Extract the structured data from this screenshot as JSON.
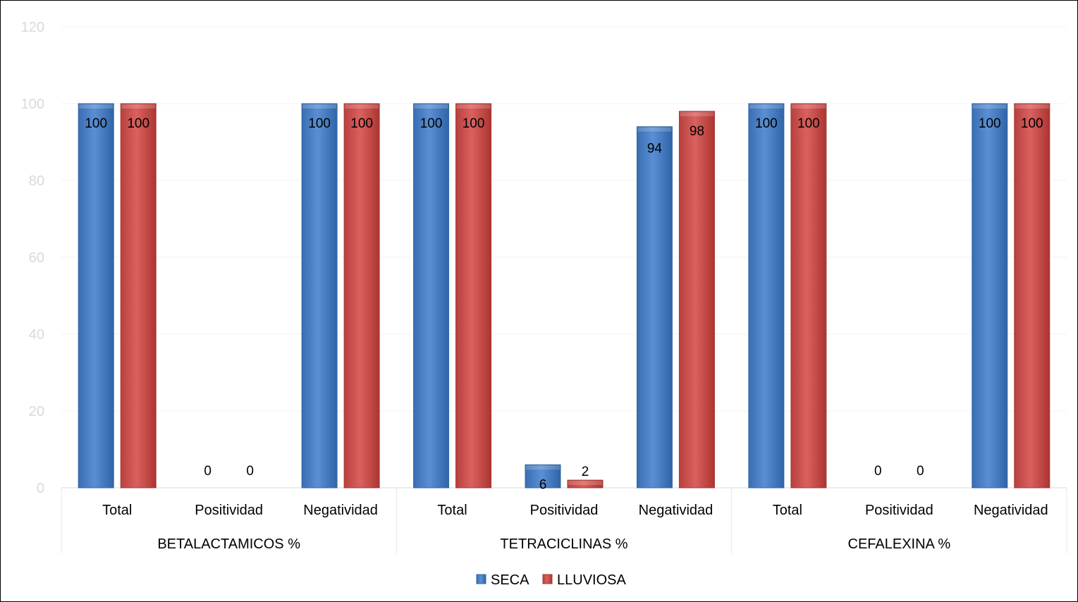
{
  "chart_data": {
    "type": "bar",
    "title": "",
    "xlabel": "",
    "ylabel": "",
    "ylim": [
      0,
      120
    ],
    "yticks": [
      0,
      20,
      40,
      60,
      80,
      100,
      120
    ],
    "grid": true,
    "legend_position": "bottom",
    "groups": [
      {
        "label": "BETALACTAMICOS  %",
        "categories": [
          "Total",
          "Positividad",
          "Negatividad"
        ]
      },
      {
        "label": "TETRACICLINAS  %",
        "categories": [
          "Total",
          "Positividad",
          "Negatividad"
        ]
      },
      {
        "label": "CEFALEXINA  %",
        "categories": [
          "Total",
          "Positividad",
          "Negatividad"
        ]
      }
    ],
    "categories": [
      "Total",
      "Positividad",
      "Negatividad",
      "Total",
      "Positividad",
      "Negatividad",
      "Total",
      "Positividad",
      "Negatividad"
    ],
    "series": [
      {
        "name": "SECA",
        "color": "#4a7ebb",
        "values": [
          100,
          0,
          100,
          100,
          6,
          94,
          100,
          0,
          100
        ]
      },
      {
        "name": "LLUVIOSA",
        "color": "#c0504d",
        "values": [
          100,
          0,
          100,
          100,
          2,
          98,
          100,
          0,
          100
        ]
      }
    ]
  }
}
